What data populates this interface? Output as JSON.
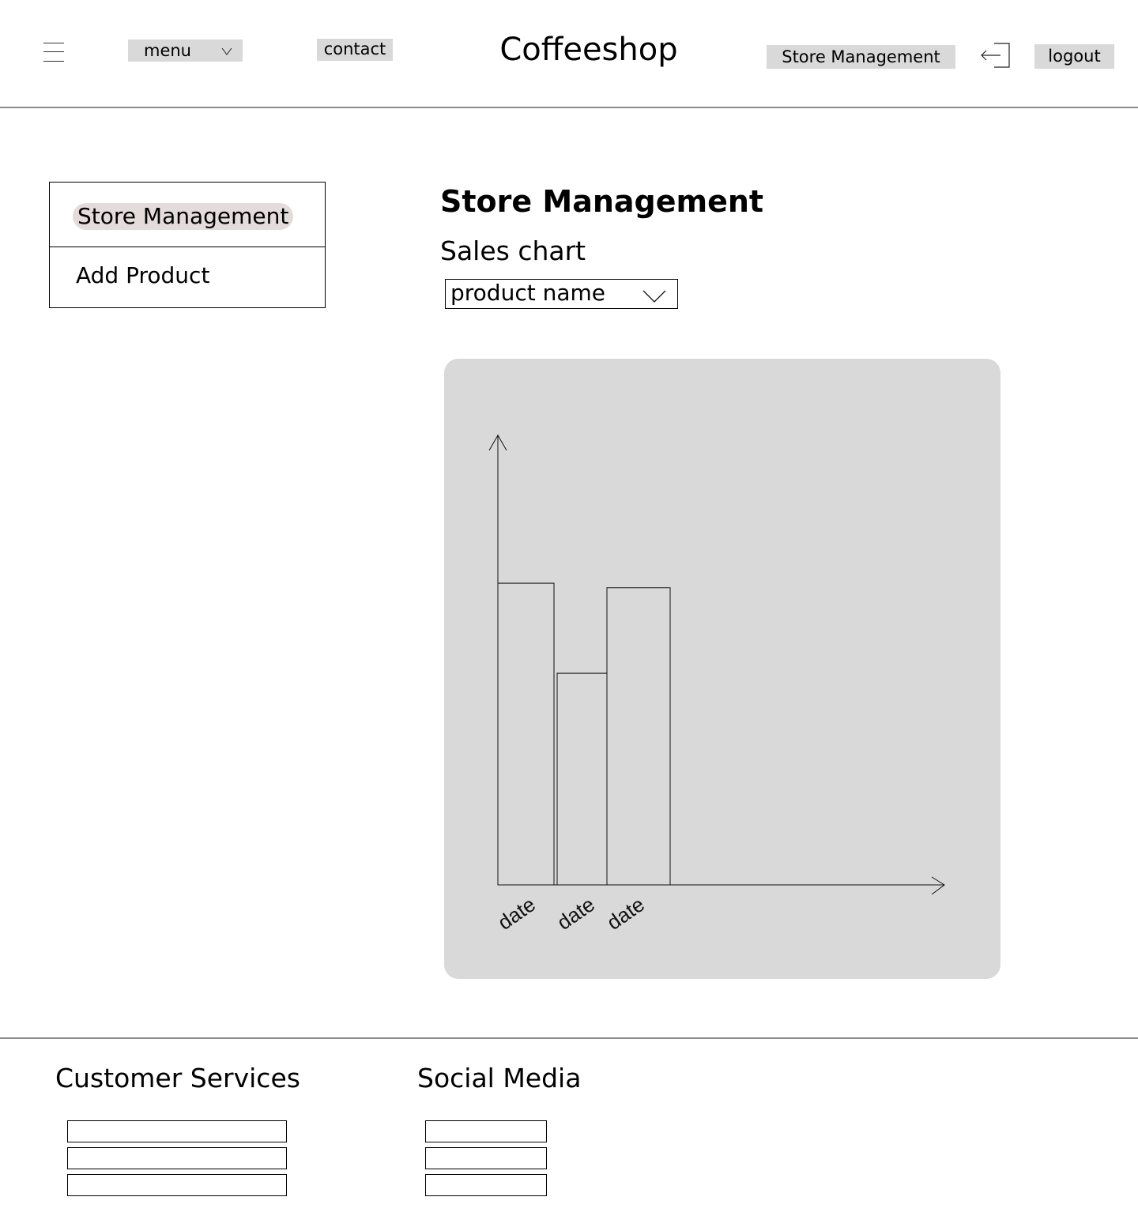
{
  "header": {
    "menu_label": "menu",
    "menu_chevron": "v",
    "contact_label": "contact",
    "site_title": "Coffeeshop",
    "store_management_label": "Store Management",
    "logout_label": "logout",
    "logout_icon": "logout-arrow-icon",
    "hamburger_icon": "hamburger-icon"
  },
  "sidebar": {
    "items": [
      {
        "label": "Store Management",
        "active": true
      },
      {
        "label": "Add Product",
        "active": false
      }
    ],
    "active_highlight_color": "#e4dbdb"
  },
  "main": {
    "title": "Store Management",
    "subtitle": "Sales chart",
    "product_select": {
      "value": "product name"
    }
  },
  "chart_data": {
    "type": "bar",
    "categories": [
      "date",
      "date",
      "date"
    ],
    "values": [
      67,
      47,
      66
    ],
    "xlabel": "",
    "ylabel": "",
    "ylim": [
      0,
      100
    ],
    "grid": false,
    "panel_color": "#d9d9d9"
  },
  "footer": {
    "customer_services_title": "Customer Services",
    "social_media_title": "Social Media",
    "customer_services_links": [
      "",
      "",
      ""
    ],
    "social_media_links": [
      "",
      "",
      ""
    ]
  }
}
